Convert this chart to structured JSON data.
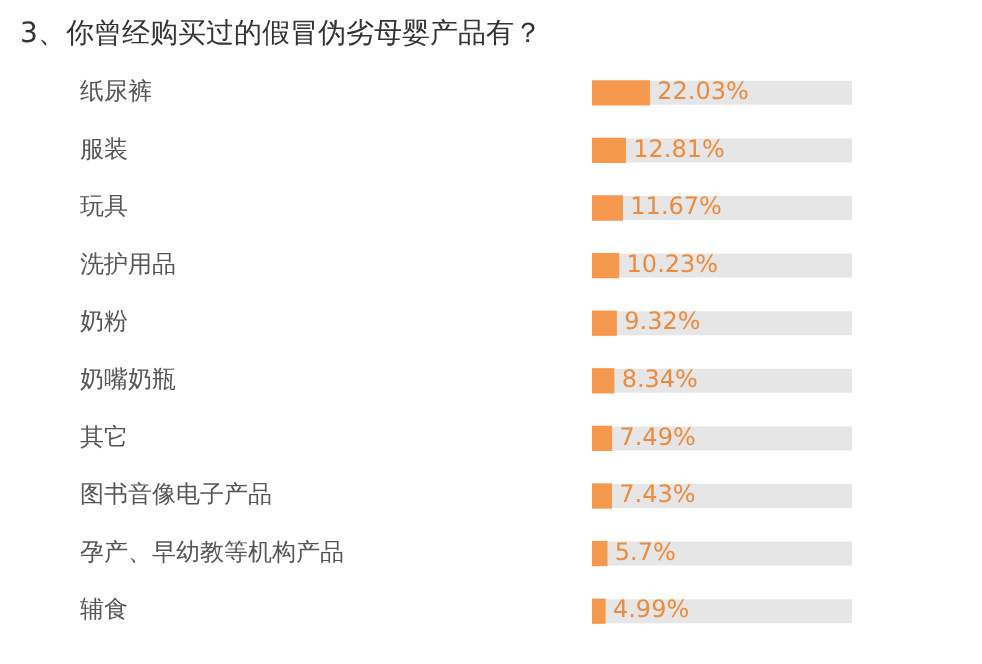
{
  "chart_data": {
    "type": "bar",
    "orientation": "horizontal",
    "title": "3、你曾经购买过的假冒伪劣母婴产品有？",
    "categories": [
      "纸尿裤",
      "服装",
      "玩具",
      "洗护用品",
      "奶粉",
      "奶嘴奶瓶",
      "其它",
      "图书音像电子产品",
      "孕产、早幼教等机构产品",
      "辅食"
    ],
    "values": [
      22.03,
      12.81,
      11.67,
      10.23,
      9.32,
      8.34,
      7.49,
      7.43,
      5.7,
      4.99
    ],
    "value_labels": [
      "22.03%",
      "12.81%",
      "11.67%",
      "10.23%",
      "9.32%",
      "8.34%",
      "7.49%",
      "7.43%",
      "5.7%",
      "4.99%"
    ],
    "color": "#f5994e",
    "xlim": [
      0,
      100
    ],
    "tick_labels": "y",
    "grid": false,
    "legend": false
  }
}
